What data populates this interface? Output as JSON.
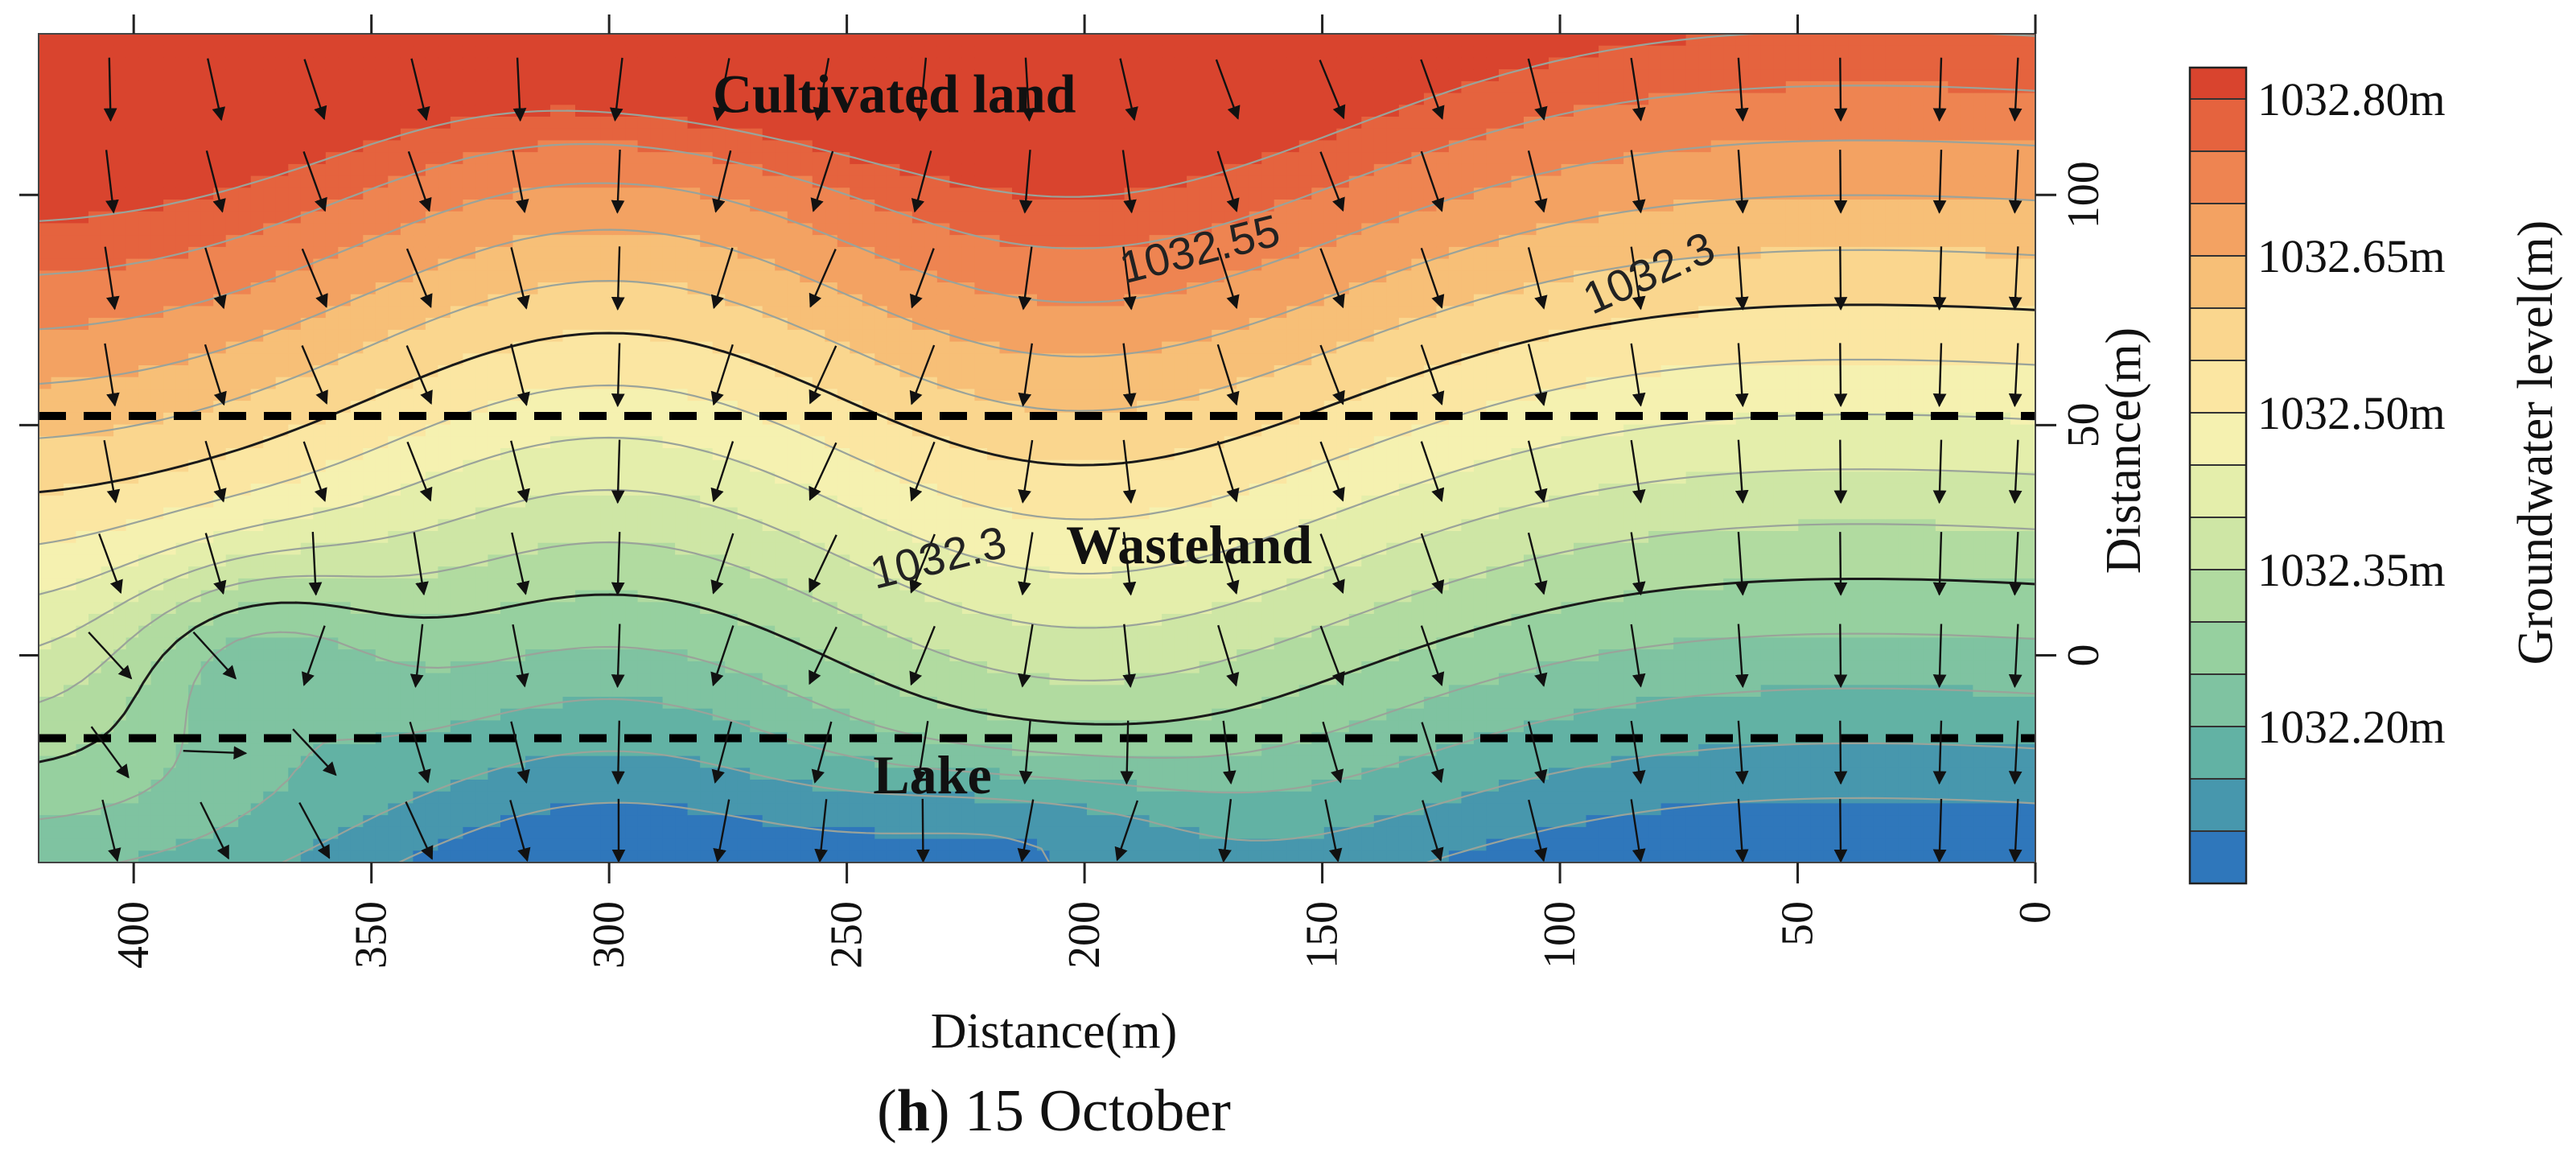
{
  "chart_data": {
    "type": "heatmap",
    "subtype": "contour-with-flow-vectors",
    "xlabel": "Distance(m)",
    "ylabel": "Distance(m)",
    "x_axis_reversed": true,
    "xlim": [
      420,
      0
    ],
    "ylim": [
      -45,
      135
    ],
    "x_ticks": [
      400,
      350,
      300,
      250,
      200,
      150,
      100,
      50,
      0
    ],
    "y_ticks": [
      0,
      50,
      100
    ],
    "caption": {
      "letter": "h",
      "text": ") 15 October",
      "open": "("
    },
    "colorbar": {
      "title": "Groundwater level(m)",
      "labels": [
        "1032.80m",
        "1032.65m",
        "1032.50m",
        "1032.35m",
        "1032.20m"
      ],
      "label_values": [
        1032.8,
        1032.65,
        1032.5,
        1032.35,
        1032.2
      ],
      "levels": [
        1032.83,
        1032.8,
        1032.75,
        1032.7,
        1032.65,
        1032.6,
        1032.55,
        1032.5,
        1032.45,
        1032.4,
        1032.35,
        1032.3,
        1032.25,
        1032.2,
        1032.15,
        1032.1,
        1032.05
      ],
      "colors": [
        "#d9442e",
        "#e5633e",
        "#ee8451",
        "#f3a262",
        "#f7bf77",
        "#fad68e",
        "#fbe6a2",
        "#f5f1b0",
        "#e4eeab",
        "#cee6a5",
        "#b1dba0",
        "#96d09f",
        "#7fc3a1",
        "#62b2a4",
        "#4797ad",
        "#2f77bb"
      ]
    },
    "contour_labels": [
      {
        "text": "1032.55",
        "x": 175,
        "y": 85
      },
      {
        "text": "1032.3",
        "x": 80,
        "y": 80
      },
      {
        "text": "1032.3",
        "x": 230,
        "y": 18
      }
    ],
    "zones": [
      {
        "name": "Cultivated land",
        "x": 240,
        "y": 118
      },
      {
        "name": "Wasteland",
        "x": 178,
        "y": 20
      },
      {
        "name": "Lake",
        "x": 232,
        "y": -30
      }
    ],
    "zone_boundaries": [
      52,
      -18
    ],
    "flow_direction": "toward lake (decreasing y), with local convergence toward depression near x≈375, y≈0"
  }
}
